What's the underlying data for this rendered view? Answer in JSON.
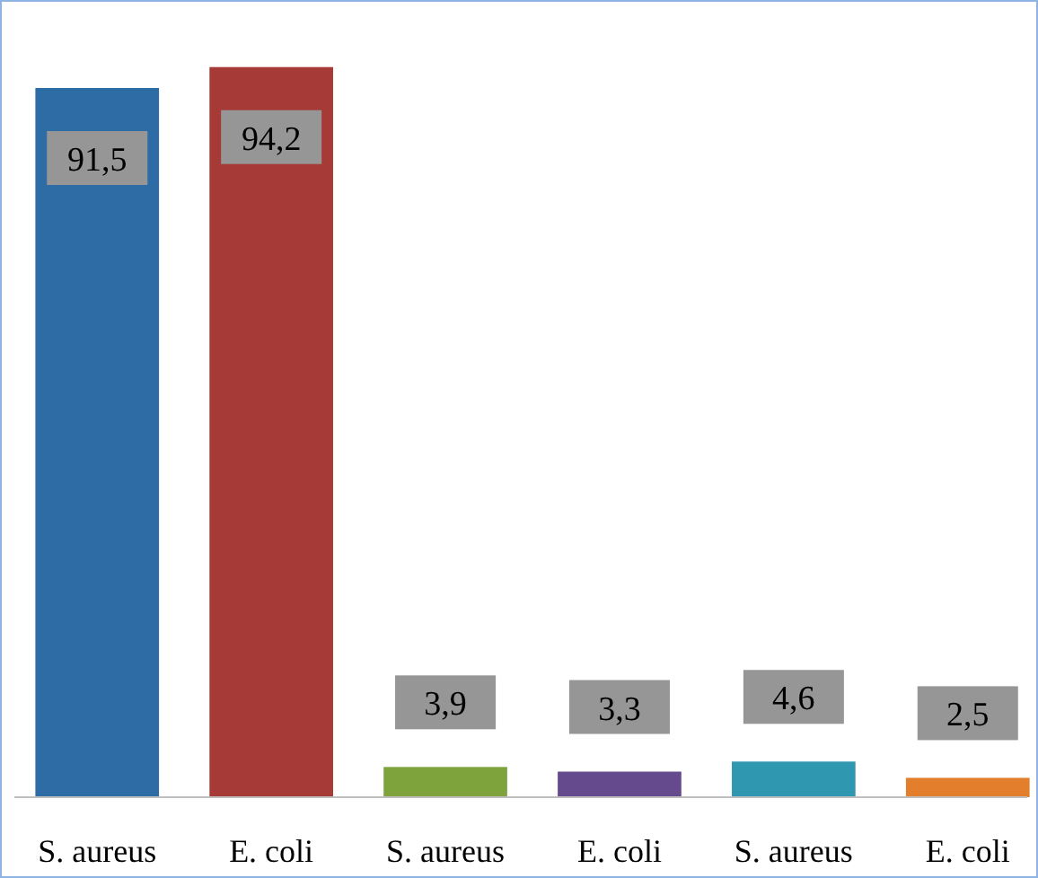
{
  "chart_data": {
    "type": "bar",
    "categories": [
      "S. aureus",
      "E. coli",
      "S. aureus",
      "E. coli",
      "S. aureus",
      "E. coli"
    ],
    "values": [
      91.5,
      94.2,
      3.9,
      3.3,
      4.6,
      2.5
    ],
    "colors": [
      "#2e6ca5",
      "#a53a36",
      "#7ea33c",
      "#664a8e",
      "#2f97b0",
      "#e27e2c"
    ],
    "value_labels": [
      "91,5",
      "94,2",
      "3,9",
      "3,3",
      "4,6",
      "2,5"
    ]
  }
}
